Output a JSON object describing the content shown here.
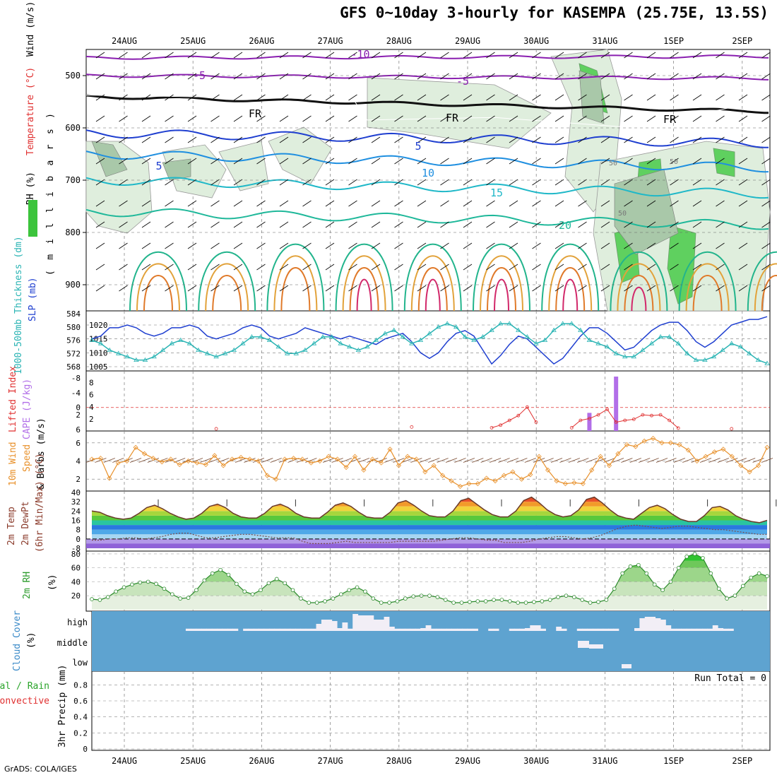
{
  "title": "GFS 0~10day 3-hourly for KASEMPA (25.75E, 13.5S)",
  "credit": "GrADS: COLA/IGES",
  "chart_data": [
    {
      "id": "upper",
      "type": "heatmap",
      "dates": [
        "24AUG",
        "25AUG",
        "26AUG",
        "27AUG",
        "28AUG",
        "29AUG",
        "30AUG",
        "31AUG",
        "1SEP",
        "2SEP"
      ],
      "ylabel_parts": [
        "RH (%)",
        "Temperature (°C)",
        "Wind (m/s)"
      ],
      "ylabel_sub": "(millibars)",
      "yticks": [
        500,
        600,
        700,
        800,
        900
      ],
      "ylim": [
        450,
        950
      ],
      "contour_labels": [
        "-10",
        "-5",
        "-5",
        "FR",
        "FR",
        "FR",
        "5",
        "5",
        "10",
        "15",
        "20"
      ],
      "rh_labels": [
        "50",
        "50",
        "50"
      ]
    },
    {
      "id": "slp",
      "type": "line",
      "ylabel_left": "1000-500mb Thickness (dm)",
      "ylabel_right": "SLP (mb)",
      "yticks_left": [
        568,
        572,
        576,
        580,
        584
      ],
      "yticks_right": [
        1005,
        1010,
        1015,
        1020
      ],
      "series": [
        {
          "name": "SLP (mb)",
          "color": "#1f3fd0",
          "axis": "right",
          "values": [
            1015,
            1016,
            1019,
            1019,
            1020,
            1019,
            1017,
            1016,
            1017,
            1019,
            1019,
            1020,
            1019,
            1016,
            1015,
            1016,
            1017,
            1019,
            1020,
            1019,
            1016,
            1015,
            1016,
            1017,
            1019,
            1018,
            1017,
            1016,
            1015,
            1016,
            1015,
            1014,
            1013,
            1015,
            1016,
            1017,
            1014,
            1010,
            1008,
            1010,
            1014,
            1017,
            1018,
            1016,
            1011,
            1006,
            1009,
            1013,
            1016,
            1015,
            1012,
            1009,
            1006,
            1008,
            1012,
            1016,
            1019,
            1019,
            1017,
            1014,
            1011,
            1012,
            1015,
            1018,
            1020,
            1021,
            1021,
            1018,
            1014,
            1012,
            1014,
            1017,
            1020,
            1021,
            1022,
            1022,
            1023
          ]
        },
        {
          "name": "1000-500mb Thickness (dm)",
          "color": "#2ab4b4",
          "axis": "left",
          "values": [
            576,
            575,
            573,
            572,
            571,
            570,
            570,
            571,
            573,
            575,
            576,
            575,
            573,
            572,
            571,
            572,
            573,
            575,
            577,
            577,
            576,
            574,
            572,
            572,
            573,
            575,
            577,
            577,
            575,
            574,
            573,
            574,
            576,
            578,
            579,
            577,
            575,
            576,
            578,
            580,
            581,
            580,
            577,
            576,
            577,
            579,
            581,
            581,
            579,
            577,
            575,
            576,
            579,
            581,
            581,
            579,
            576,
            575,
            574,
            572,
            571,
            571,
            573,
            575,
            577,
            577,
            575,
            572,
            570,
            570,
            571,
            573,
            575,
            574,
            572,
            570,
            569
          ]
        }
      ]
    },
    {
      "id": "cape",
      "type": "bar",
      "ylabel_left": "Lifted Index",
      "ylabel_right": "CAPE (J/kg)",
      "li_ticks": [
        "-8",
        "-4",
        "0",
        "2",
        "6"
      ],
      "cape_ticks": [
        2,
        4,
        6,
        8
      ],
      "cape_values": [
        0,
        0,
        0,
        0,
        0,
        0,
        0,
        0,
        0,
        0,
        0,
        0,
        0,
        0,
        0,
        0,
        0,
        0,
        0,
        0,
        0,
        0,
        0,
        0,
        0,
        0,
        0,
        0,
        0,
        0,
        0,
        0,
        0,
        0,
        0,
        0,
        0,
        0,
        0,
        0,
        0,
        0,
        0,
        0,
        0,
        0,
        0,
        0,
        0,
        0,
        0,
        0,
        0,
        0,
        0,
        0,
        3,
        0,
        0,
        9,
        0,
        0,
        0,
        0,
        0,
        0,
        0,
        0,
        0,
        0,
        0,
        0,
        0,
        0,
        0,
        0,
        0
      ],
      "li_values": [
        null,
        null,
        null,
        null,
        null,
        null,
        null,
        null,
        null,
        null,
        null,
        null,
        null,
        null,
        5.8,
        null,
        null,
        null,
        null,
        null,
        null,
        null,
        null,
        null,
        null,
        null,
        null,
        null,
        null,
        null,
        null,
        null,
        null,
        null,
        null,
        null,
        5.3,
        null,
        null,
        null,
        null,
        null,
        null,
        null,
        null,
        5.5,
        4.8,
        3.5,
        2.2,
        -0.1,
        4.0,
        null,
        null,
        null,
        5.5,
        3.5,
        3.0,
        2.0,
        0.5,
        4.0,
        3.5,
        3.2,
        2.0,
        2.2,
        2.0,
        3.5,
        5.6,
        null,
        null,
        null,
        null,
        null,
        5.8,
        null,
        null,
        null,
        null
      ]
    },
    {
      "id": "wind10",
      "type": "line",
      "ylabel": "10m Wind Speed & Barbs (m/s)",
      "yticks": [
        2,
        4,
        6
      ],
      "series": [
        {
          "name": "10m Wind Speed",
          "color": "#e8902a",
          "values": [
            4.2,
            4.3,
            2.1,
            3.8,
            4.0,
            5.5,
            4.8,
            4.3,
            3.9,
            4.2,
            3.6,
            4.0,
            3.8,
            3.6,
            4.6,
            3.5,
            4.2,
            4.4,
            4.2,
            4.0,
            2.4,
            2.0,
            4.2,
            4.3,
            4.2,
            3.8,
            4.0,
            4.5,
            4.2,
            3.3,
            4.5,
            3.0,
            4.2,
            3.8,
            5.3,
            3.5,
            4.5,
            4.2,
            2.8,
            3.5,
            2.4,
            1.8,
            1.2,
            1.5,
            1.5,
            2.1,
            1.8,
            2.4,
            2.8,
            2.0,
            2.5,
            4.5,
            3.0,
            1.8,
            1.5,
            1.6,
            1.5,
            3.0,
            4.5,
            3.5,
            4.8,
            5.8,
            5.6,
            6.2,
            6.5,
            6.0,
            6.0,
            5.8,
            5.2,
            4.0,
            4.5,
            5.0,
            5.3,
            4.5,
            3.5,
            2.8,
            3.5,
            5.5
          ]
        }
      ]
    },
    {
      "id": "temp2m",
      "type": "area",
      "ylabel": "2m Temp 2m DewPt (6hr Min/Max) (°C)",
      "yticks": [
        "-8",
        "0",
        "8",
        "16",
        "24",
        "32",
        "40"
      ],
      "temp_values": [
        24,
        23,
        20,
        18,
        17,
        18,
        22,
        27,
        29,
        26,
        22,
        19,
        17,
        18,
        22,
        28,
        30,
        27,
        22,
        19,
        18,
        18,
        22,
        28,
        30,
        27,
        22,
        19,
        18,
        18,
        23,
        29,
        31,
        28,
        23,
        19,
        18,
        18,
        23,
        31,
        33,
        29,
        24,
        20,
        19,
        19,
        24,
        33,
        35,
        30,
        25,
        21,
        19,
        19,
        24,
        33,
        36,
        31,
        25,
        21,
        19,
        20,
        25,
        34,
        36,
        31,
        25,
        20,
        18,
        17,
        22,
        27,
        29,
        26,
        21,
        17,
        15,
        15,
        20,
        27,
        28,
        25,
        20,
        17,
        15,
        14,
        16
      ],
      "dewpoint_values": [
        -1,
        -1,
        0,
        0,
        1,
        1,
        0,
        1,
        2,
        4,
        5,
        5,
        3,
        1,
        1,
        2,
        3,
        4,
        4,
        3,
        2,
        1,
        1,
        1,
        -2,
        -4,
        -4,
        -4,
        -3,
        -2,
        -3,
        -3,
        -3,
        -3,
        -3,
        -2,
        -2,
        -2,
        -2,
        -2,
        -1,
        0,
        1,
        1,
        0,
        -1,
        -1,
        -3,
        -3,
        -3,
        -2,
        0,
        1,
        2,
        2,
        1,
        0,
        1,
        3,
        6,
        9,
        11,
        12,
        11,
        10,
        9,
        10,
        11,
        11,
        10,
        9,
        8,
        8,
        7,
        6,
        5,
        4,
        4
      ]
    },
    {
      "id": "rh2m",
      "type": "area",
      "ylabel": "2m RH (%)",
      "yticks": [
        20,
        40,
        60,
        80
      ],
      "values": [
        15,
        14,
        18,
        26,
        32,
        36,
        39,
        40,
        37,
        30,
        22,
        16,
        17,
        28,
        42,
        52,
        57,
        50,
        37,
        26,
        22,
        28,
        38,
        44,
        38,
        28,
        16,
        10,
        10,
        12,
        16,
        22,
        28,
        32,
        26,
        16,
        10,
        10,
        12,
        16,
        19,
        20,
        20,
        18,
        14,
        10,
        10,
        11,
        12,
        12,
        14,
        14,
        12,
        10,
        10,
        11,
        12,
        14,
        18,
        20,
        18,
        14,
        10,
        11,
        14,
        30,
        52,
        62,
        64,
        52,
        36,
        28,
        40,
        60,
        76,
        80,
        74,
        52,
        30,
        16,
        20,
        34,
        46,
        52,
        48
      ]
    },
    {
      "id": "cloud",
      "type": "bar",
      "ylabel": "Cloud Cover (%)",
      "levels": [
        "high",
        "middle",
        "low"
      ],
      "high": [
        0,
        0,
        0,
        0,
        0,
        0,
        0,
        0,
        0,
        0,
        0,
        0,
        0,
        0,
        0,
        0,
        0,
        0,
        0,
        0,
        0,
        0,
        0,
        0,
        0,
        0,
        0,
        0,
        0,
        0,
        0,
        0,
        0,
        0,
        0,
        0,
        0,
        0,
        0,
        0,
        0,
        0,
        0,
        0,
        0,
        0,
        0,
        0,
        0,
        0,
        0,
        0,
        0,
        0,
        0,
        0,
        0,
        0,
        0,
        0,
        0,
        0,
        0,
        0,
        0,
        0,
        0,
        0,
        0,
        0,
        0,
        0,
        0,
        0,
        0,
        0,
        0,
        0,
        0,
        0
      ],
      "high_cover": [
        0,
        0,
        0,
        0,
        0,
        0,
        0,
        0,
        0,
        0,
        0,
        0,
        0,
        0,
        0,
        0,
        0,
        0,
        8,
        8,
        8,
        8,
        8,
        8,
        8,
        8,
        8,
        8,
        0,
        8,
        8,
        8,
        8,
        8,
        8,
        8,
        8,
        8,
        8,
        8,
        8,
        8,
        8,
        25,
        40,
        40,
        35,
        10,
        30,
        8,
        60,
        55,
        55,
        55,
        40,
        40,
        50,
        15,
        8,
        8,
        8,
        8,
        8,
        10,
        20,
        8,
        8,
        8,
        8,
        8,
        8,
        8,
        8,
        8,
        0,
        0,
        8,
        8,
        0,
        0,
        8,
        8,
        8,
        10,
        20,
        20,
        8,
        0,
        0,
        15,
        8,
        0,
        0,
        8,
        8,
        8,
        8,
        8,
        8,
        8,
        8,
        0,
        0,
        0,
        10,
        45,
        50,
        50,
        45,
        40,
        20,
        8,
        8,
        8,
        8,
        8,
        8,
        8,
        8,
        20,
        10,
        8,
        8,
        0,
        0,
        0,
        0,
        0,
        0,
        0
      ],
      "mid_cover": [
        0,
        0,
        0,
        0,
        0,
        0,
        0,
        0,
        0,
        0,
        0,
        0,
        0,
        0,
        0,
        0,
        0,
        0,
        0,
        0,
        0,
        0,
        0,
        0,
        0,
        0,
        0,
        0,
        0,
        0,
        0,
        0,
        0,
        0,
        0,
        0,
        0,
        0,
        0,
        0,
        0,
        0,
        0,
        0,
        0,
        0,
        0,
        0,
        0,
        0,
        0,
        0,
        0,
        0,
        0,
        0,
        0,
        0,
        0,
        0,
        0,
        0,
        0,
        0,
        0,
        0,
        0,
        0,
        0,
        0,
        0,
        0,
        0,
        0,
        0,
        0,
        0,
        0,
        0,
        0,
        0,
        0,
        0,
        0,
        0,
        0,
        0,
        0,
        0,
        0,
        0,
        0,
        0,
        0,
        0,
        0,
        0,
        0,
        0,
        0,
        0,
        0,
        0,
        0,
        0,
        0,
        0,
        0,
        0,
        0,
        0,
        0,
        0,
        0,
        0,
        0,
        0,
        0,
        0,
        0,
        0,
        0,
        0,
        0,
        0,
        0,
        0,
        0,
        0,
        0,
        0
      ],
      "low_cover": [
        0,
        0,
        0,
        0,
        0,
        0,
        0,
        0,
        0,
        0,
        0,
        0,
        0,
        0,
        0,
        0,
        0,
        0,
        0,
        0,
        0,
        0,
        0,
        0,
        0,
        0,
        0,
        0,
        0,
        0,
        0,
        0,
        0,
        0,
        0,
        0,
        0,
        0,
        0,
        0,
        0,
        0,
        0,
        0,
        0,
        0,
        0,
        0,
        0,
        0,
        0,
        0,
        0,
        0,
        0,
        0,
        0,
        0,
        0,
        0,
        0,
        0,
        0,
        0,
        0,
        0,
        0,
        0,
        0,
        0,
        0,
        0,
        0,
        0,
        0,
        0,
        0,
        0,
        0,
        0,
        0,
        0,
        0,
        0,
        0,
        0,
        0,
        0,
        0,
        0,
        0,
        0,
        0,
        0,
        0,
        0,
        0,
        0,
        0,
        0,
        0,
        0,
        0,
        0,
        0,
        0,
        0,
        0,
        0,
        0,
        0,
        0,
        0,
        0,
        0,
        0,
        0,
        0,
        0,
        0,
        0,
        0,
        0,
        0,
        0,
        0,
        0,
        0,
        0,
        0,
        0
      ]
    },
    {
      "id": "precip",
      "type": "bar",
      "ylabel": "3hr Precip (mm)",
      "legend": [
        "Total / Rain",
        "Convective"
      ],
      "yticks": [
        "0",
        "0.2",
        "0.4",
        "0.6",
        "0.8"
      ],
      "run_total": "Run Total = 0",
      "values": []
    }
  ]
}
